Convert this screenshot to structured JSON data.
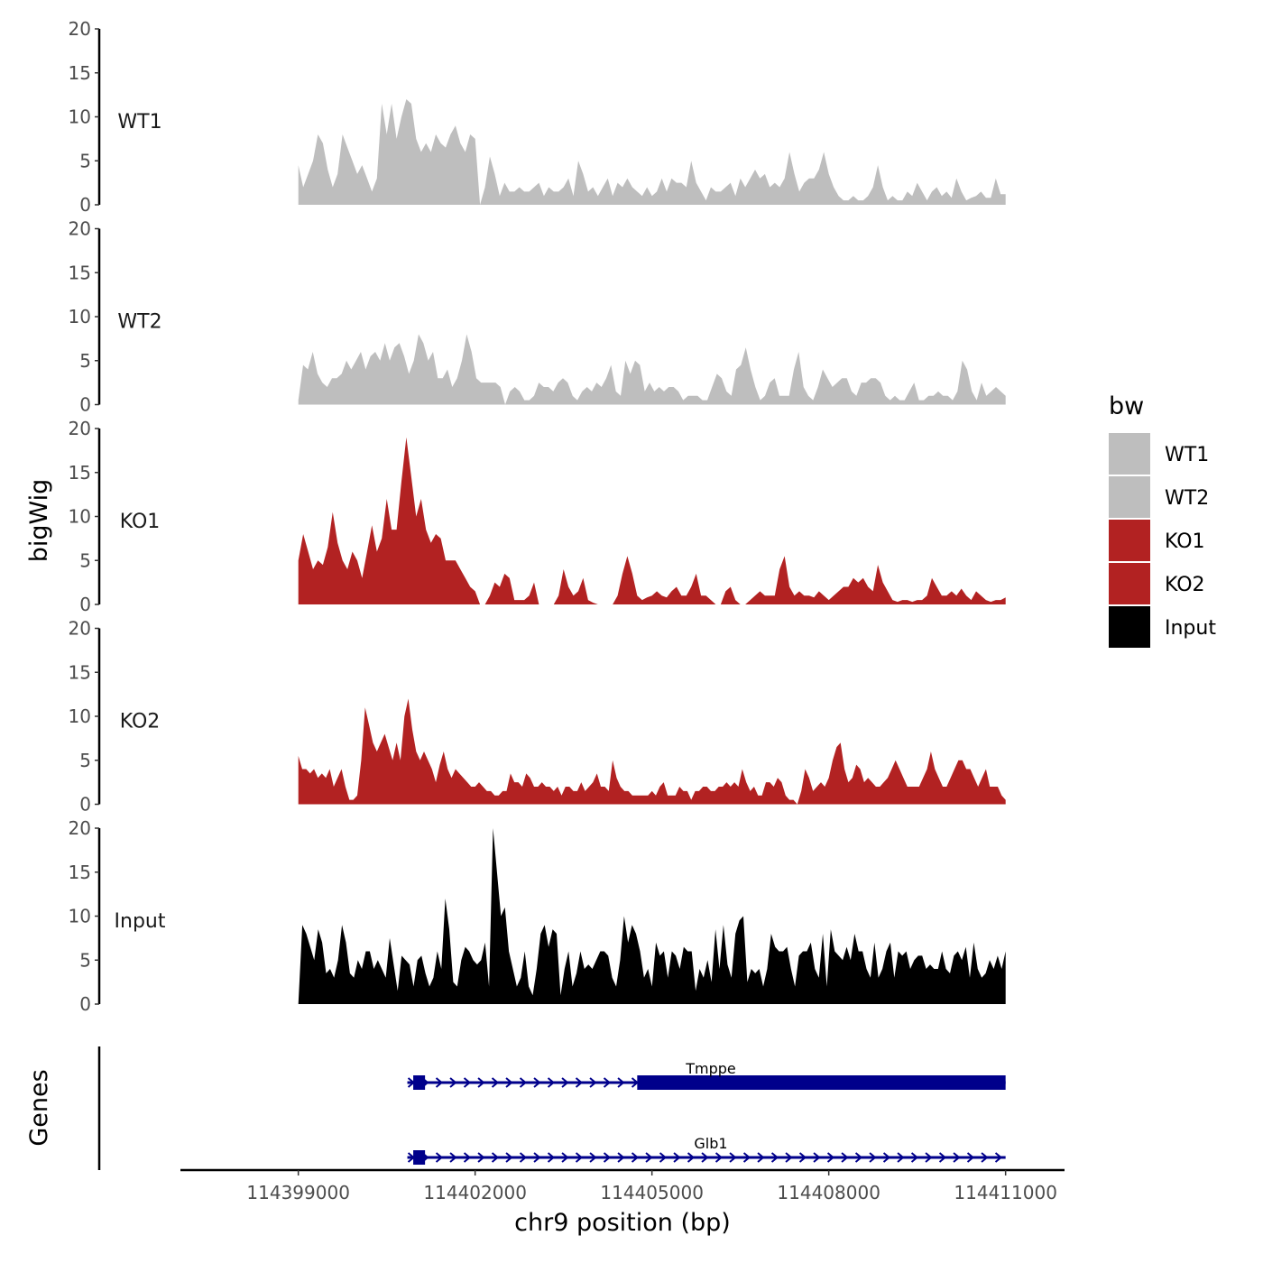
{
  "chart_data": {
    "type": "area",
    "chromosome_region": "chr9:114399000-114411000",
    "ylabel": "bigWig",
    "xlabel": "chr9 position (bp)",
    "genes_label": "Genes",
    "xlim": [
      114397000,
      114412000
    ],
    "ylim": [
      0,
      20
    ],
    "yticks": [
      0,
      5,
      10,
      15,
      20
    ],
    "xticks": [
      114399000,
      114402000,
      114405000,
      114408000,
      114411000
    ],
    "xtick_labels": [
      "114399000",
      "114402000",
      "114405000",
      "114408000",
      "114411000"
    ],
    "legend": {
      "title": "bw",
      "position": "right",
      "entries": [
        {
          "label": "WT1",
          "color": "#bebebe"
        },
        {
          "label": "WT2",
          "color": "#bebebe"
        },
        {
          "label": "KO1",
          "color": "#b22222"
        },
        {
          "label": "KO2",
          "color": "#b22222"
        },
        {
          "label": "Input",
          "color": "#000000"
        }
      ]
    },
    "series": [
      {
        "name": "WT1",
        "color": "#bebebe",
        "x_start": 114399000,
        "x_end": 114411000,
        "values": [
          4.5,
          2,
          3.5,
          5,
          8,
          7,
          4,
          2,
          3.5,
          8,
          6.5,
          5,
          3.5,
          4.5,
          3,
          1.5,
          3,
          11.5,
          8,
          11.5,
          7.5,
          10,
          12,
          11.5,
          7.5,
          6,
          7,
          6,
          8,
          7,
          6.5,
          8,
          9,
          7,
          6,
          8,
          7.5,
          0,
          2,
          5.5,
          3.5,
          1,
          2.5,
          1.5,
          1.5,
          2,
          1.5,
          1.5,
          2,
          2.5,
          1,
          2,
          1.5,
          1.5,
          2,
          3,
          1,
          5,
          3.5,
          1.5,
          2,
          1,
          2,
          3,
          1,
          2.5,
          2,
          3,
          2,
          1.5,
          1,
          2,
          1,
          1.5,
          3,
          1.5,
          3,
          2.5,
          2.5,
          2,
          5,
          2.5,
          1.5,
          0.5,
          2,
          1.5,
          1.5,
          2,
          2.5,
          1,
          3,
          2,
          3,
          4,
          3,
          3.5,
          2,
          2.5,
          2,
          3,
          6,
          3.5,
          1.5,
          2.5,
          3,
          3,
          4,
          6,
          3.5,
          2,
          1,
          0.5,
          0.5,
          1,
          0.5,
          0.5,
          1,
          2,
          4.5,
          2,
          0.5,
          1,
          0.5,
          0.5,
          1.5,
          1,
          2.5,
          1.5,
          0.5,
          1.5,
          2,
          1,
          1.5,
          0.8,
          3,
          1.5,
          0.5,
          0.8,
          1,
          1.5,
          0.8,
          0.8,
          3,
          1.2,
          1.2
        ]
      },
      {
        "name": "WT2",
        "color": "#bebebe",
        "x_start": 114399000,
        "x_end": 114411000,
        "values": [
          0.5,
          4.5,
          4,
          6,
          3.5,
          2.5,
          2,
          3,
          3,
          3.5,
          5,
          4,
          5,
          6,
          4,
          5.5,
          6,
          5,
          7,
          5,
          6.5,
          7,
          5.5,
          3.5,
          5,
          8,
          7,
          5,
          6,
          3,
          3,
          4,
          2,
          3,
          5,
          8,
          6,
          3,
          2.5,
          2.5,
          2.5,
          2.5,
          2,
          0,
          1.5,
          2,
          1.5,
          0.5,
          0.5,
          1,
          2.5,
          2,
          2,
          1.5,
          2.5,
          3,
          2.5,
          1,
          0.5,
          1.5,
          2,
          1.5,
          2.5,
          2,
          3,
          4.5,
          1.5,
          1,
          5,
          3.5,
          5,
          4.5,
          1.5,
          2.5,
          1.5,
          2,
          1.5,
          2,
          2,
          1.5,
          0.5,
          1,
          1,
          1,
          0.5,
          0.5,
          2,
          3.5,
          3,
          1.5,
          1,
          4,
          4.5,
          6.5,
          4,
          2,
          0.5,
          1,
          2.5,
          3,
          1,
          1,
          1,
          4,
          6,
          2,
          1,
          0.5,
          2,
          4,
          3,
          2,
          2.5,
          3,
          3,
          1.5,
          1,
          2.5,
          2.5,
          3,
          3,
          2.5,
          1,
          0.5,
          1,
          0.5,
          0.5,
          1.5,
          2.5,
          0.5,
          0.5,
          1,
          1,
          1.5,
          1,
          1,
          0.5,
          1.5,
          5,
          4,
          1.5,
          0.5,
          2.5,
          1,
          1.5,
          2,
          1.5,
          1
        ]
      },
      {
        "name": "KO1",
        "color": "#b22222",
        "x_start": 114399000,
        "x_end": 114411000,
        "values": [
          5,
          8,
          6,
          4,
          5,
          4.5,
          6.5,
          10.5,
          7,
          5,
          4,
          6,
          5,
          3,
          6,
          9,
          6,
          7.5,
          12,
          8.5,
          8.5,
          14,
          19,
          14.5,
          10,
          12,
          8.5,
          7,
          8,
          7.5,
          5,
          5,
          5,
          4,
          3,
          2,
          1.5,
          0,
          0,
          1,
          2.5,
          2,
          3.5,
          3,
          0.5,
          0.5,
          0.5,
          1,
          2.5,
          0,
          0,
          0,
          0,
          1,
          4,
          2,
          1,
          1.5,
          3,
          0.5,
          0.2,
          0,
          0,
          0,
          0,
          1,
          3.5,
          5.5,
          3.5,
          1,
          0.5,
          0.8,
          1,
          1.5,
          1,
          0.8,
          1.5,
          2,
          1,
          1,
          2,
          3.5,
          1,
          1,
          0.5,
          0,
          0,
          1.5,
          2,
          0.5,
          0,
          0,
          0.5,
          1,
          1.5,
          1,
          1,
          1,
          4,
          5.5,
          2,
          1,
          1.5,
          1,
          1,
          0.8,
          1.5,
          1,
          0.5,
          1,
          1.5,
          2,
          2,
          3,
          2.5,
          3,
          2,
          1.5,
          4.5,
          2.5,
          1.5,
          0.5,
          0.3,
          0.5,
          0.5,
          0.3,
          0.5,
          0.5,
          1,
          3,
          2,
          1,
          1,
          1.5,
          1,
          1.8,
          1,
          0.5,
          1.5,
          1,
          0.5,
          0.3,
          0.5,
          0.5,
          0.8
        ]
      },
      {
        "name": "KO2",
        "color": "#b22222",
        "x_start": 114399000,
        "x_end": 114411000,
        "values": [
          5.5,
          4,
          4,
          3.5,
          4,
          3,
          3.5,
          3,
          4,
          2,
          3,
          4,
          2,
          0.5,
          0.5,
          1,
          5,
          11,
          9,
          7,
          6,
          7,
          8,
          6.5,
          5,
          7,
          5,
          10,
          12,
          8.5,
          6,
          5,
          6,
          5,
          4,
          2.5,
          4.5,
          6,
          4,
          3,
          4,
          3.5,
          3,
          2.5,
          2,
          2,
          2.5,
          2,
          1.5,
          1.5,
          1,
          1,
          1.5,
          1.5,
          3.5,
          2.5,
          2.5,
          2,
          3.5,
          3,
          2,
          2,
          2.5,
          2,
          2,
          1.5,
          2,
          1,
          2,
          2,
          1.5,
          1.5,
          2.5,
          1.5,
          2,
          2.5,
          3.5,
          2,
          2,
          1.5,
          5,
          3,
          2,
          1.5,
          1.5,
          1,
          1,
          1,
          1,
          1,
          1.5,
          1,
          2,
          2.5,
          1,
          1,
          1,
          2,
          1.5,
          1.5,
          0.5,
          1.5,
          1.5,
          2,
          2,
          1.5,
          1.5,
          2,
          2,
          2.5,
          2,
          2.5,
          2,
          4,
          2.5,
          1.5,
          2,
          1,
          1,
          2.5,
          2.5,
          2,
          3,
          2.5,
          1,
          0.5,
          0.5,
          0,
          1.5,
          4,
          3,
          1.5,
          2,
          2.5,
          2,
          3,
          5,
          6.5,
          7,
          4,
          2.5,
          3,
          4.5,
          4,
          2.5,
          3,
          2.5,
          2,
          2,
          2.5,
          3,
          4,
          5,
          4,
          3,
          2,
          2,
          2,
          2,
          3,
          4,
          6,
          4,
          3,
          2,
          2,
          3,
          4,
          5,
          5,
          4,
          4,
          3,
          2,
          3,
          4,
          2,
          2,
          2,
          1,
          0.5
        ]
      },
      {
        "name": "Input",
        "color": "#000000",
        "x_start": 114399000,
        "x_end": 114411000,
        "values": [
          0,
          9,
          8,
          6.5,
          5,
          8.5,
          7,
          3.5,
          4,
          3,
          5,
          9,
          7,
          3.5,
          3,
          5,
          4,
          6,
          6,
          4,
          5,
          4,
          3,
          7.5,
          4.5,
          1.5,
          5.5,
          5,
          4.5,
          2,
          5,
          5.5,
          3.5,
          2,
          3,
          6,
          4,
          12,
          8.5,
          2.5,
          2,
          5,
          6.5,
          6,
          5,
          4.5,
          5,
          7,
          2,
          20,
          15,
          10,
          11,
          6,
          4,
          2,
          3,
          6,
          2,
          1,
          4,
          8,
          9,
          6.5,
          8.5,
          8,
          1,
          4,
          6,
          2,
          3.5,
          6,
          4,
          4.5,
          4,
          5,
          6,
          6,
          5.5,
          3,
          2,
          5,
          10,
          7,
          9,
          8,
          6,
          3,
          4,
          2,
          7,
          5.5,
          6,
          3,
          6,
          5.5,
          4,
          6.5,
          6,
          6,
          1.5,
          4,
          3,
          5,
          2.5,
          8.5,
          4,
          9,
          4.5,
          3,
          8,
          9.5,
          10,
          2.5,
          4,
          3.5,
          4,
          2,
          4,
          8,
          6.5,
          6,
          6,
          6.5,
          4,
          2,
          5.5,
          6,
          6,
          7,
          4,
          3,
          8,
          2,
          8.5,
          6,
          5.5,
          5,
          6.5,
          5,
          8,
          6,
          6,
          4,
          3,
          7,
          3,
          4,
          6,
          7,
          3,
          6,
          5.5,
          6,
          4,
          5,
          5.5,
          5.5,
          4,
          4.5,
          4,
          4,
          6,
          4,
          3.5,
          5.5,
          6,
          5,
          6.5,
          3,
          7,
          4,
          3,
          3.5,
          5,
          4,
          5.5,
          4,
          6
        ]
      }
    ],
    "genes": [
      {
        "name": "Tmppe",
        "color": "#00008b",
        "start": 114400850,
        "end": 114411000,
        "strand": "+",
        "exons": [
          {
            "start": 114400950,
            "end": 114401150
          },
          {
            "start": 114404750,
            "end": 114411000
          }
        ]
      },
      {
        "name": "Glb1",
        "color": "#00008b",
        "start": 114400850,
        "end": 114411000,
        "strand": "+",
        "exons": [
          {
            "start": 114400950,
            "end": 114401150
          }
        ]
      }
    ]
  }
}
